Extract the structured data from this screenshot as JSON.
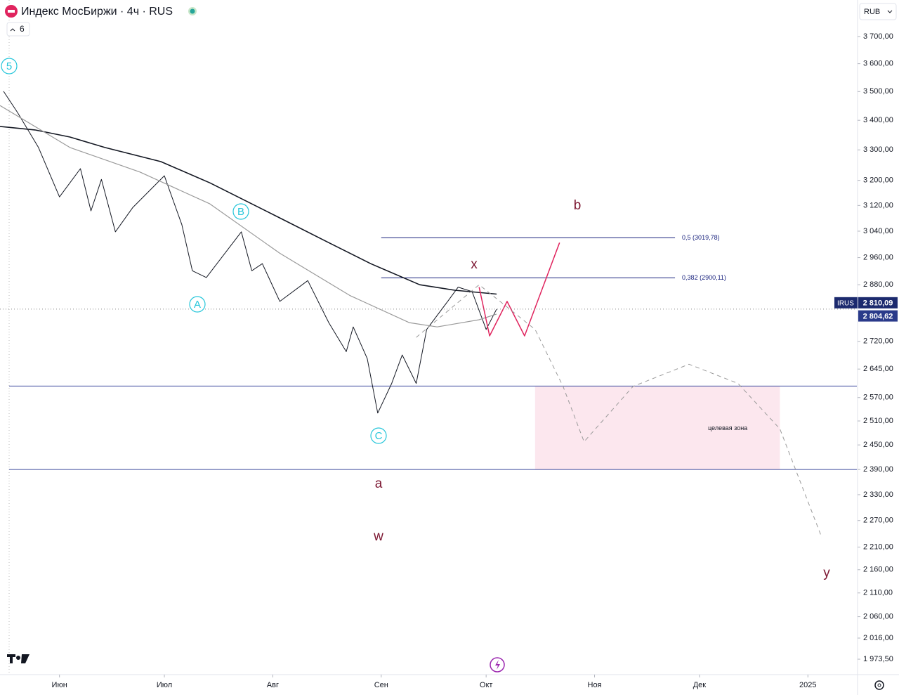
{
  "header": {
    "title": "Индекс МосБиржи · 4ч · RUS",
    "count": "6",
    "currency": "RUB"
  },
  "chart_data": {
    "type": "line",
    "log": true,
    "xlim": [
      14,
      259
    ],
    "xticks": [
      {
        "value": 31,
        "label": "Июн"
      },
      {
        "value": 61,
        "label": "Июл"
      },
      {
        "value": 92,
        "label": "Авг"
      },
      {
        "value": 123,
        "label": "Сен"
      },
      {
        "value": 153,
        "label": "Окт"
      },
      {
        "value": 184,
        "label": "Ноя"
      },
      {
        "value": 214,
        "label": "Дек"
      },
      {
        "value": 245,
        "label": "2025"
      }
    ],
    "ylim": [
      1943,
      3839
    ],
    "yticks": [
      {
        "value": 3700,
        "label": "3 700,00"
      },
      {
        "value": 3600,
        "label": "3 600,00"
      },
      {
        "value": 3500,
        "label": "3 500,00"
      },
      {
        "value": 3400,
        "label": "3 400,00"
      },
      {
        "value": 3300,
        "label": "3 300,00"
      },
      {
        "value": 3200,
        "label": "3 200,00"
      },
      {
        "value": 3120,
        "label": "3 120,00"
      },
      {
        "value": 3040,
        "label": "3 040,00"
      },
      {
        "value": 2960,
        "label": "2 960,00"
      },
      {
        "value": 2880,
        "label": "2 880,00"
      },
      {
        "value": 2720,
        "label": "2 720,00"
      },
      {
        "value": 2645,
        "label": "2 645,00"
      },
      {
        "value": 2570,
        "label": "2 570,00"
      },
      {
        "value": 2510,
        "label": "2 510,00"
      },
      {
        "value": 2450,
        "label": "2 450,00"
      },
      {
        "value": 2390,
        "label": "2 390,00"
      },
      {
        "value": 2330,
        "label": "2 330,00"
      },
      {
        "value": 2270,
        "label": "2 270,00"
      },
      {
        "value": 2210,
        "label": "2 210,00"
      },
      {
        "value": 2160,
        "label": "2 160,00"
      },
      {
        "value": 2110,
        "label": "2 110,00"
      },
      {
        "value": 2060,
        "label": "2 060,00"
      },
      {
        "value": 2016,
        "label": "2 016,00"
      },
      {
        "value": 1973.5,
        "label": "1 973,50"
      }
    ],
    "series": [
      {
        "name": "IRUS",
        "color": "#131722",
        "width": 1,
        "style": "solid",
        "x": [
          15,
          19,
          25,
          31,
          37,
          40,
          43,
          47,
          52,
          61,
          66,
          69,
          73,
          83,
          86,
          89,
          94,
          102,
          108,
          113,
          115,
          119,
          122,
          126,
          129,
          133,
          136,
          142,
          145,
          149,
          153,
          156
        ],
        "values": [
          3501,
          3427,
          3308,
          3147,
          3238,
          3103,
          3203,
          3038,
          3114,
          3215,
          3060,
          2921,
          2901,
          3038,
          2921,
          2942,
          2832,
          2892,
          2772,
          2692,
          2760,
          2673,
          2530,
          2607,
          2683,
          2607,
          2753,
          2832,
          2873,
          2860,
          2753,
          2810.09
        ]
      },
      {
        "name": "MA",
        "color": "#131722",
        "width": 1.6,
        "style": "solid",
        "x": [
          14,
          24,
          34,
          44,
          60,
          74,
          94,
          108,
          120,
          134,
          144,
          156
        ],
        "values": [
          3379,
          3367,
          3343,
          3308,
          3261,
          3192,
          3081,
          3005,
          2942,
          2880,
          2864,
          2853
        ]
      },
      {
        "name": "MA2",
        "color": "#9a9a9a",
        "width": 1.2,
        "style": "solid",
        "x": [
          14,
          34,
          54,
          74,
          94,
          114,
          131,
          139,
          151,
          156
        ],
        "values": [
          3451,
          3308,
          3227,
          3125,
          2973,
          2849,
          2772,
          2760,
          2780,
          2796
        ]
      },
      {
        "name": "forecast",
        "color": "#e0245e",
        "width": 1.5,
        "style": "solid",
        "x": [
          151,
          154,
          159,
          164,
          174
        ],
        "values": [
          2873,
          2735,
          2832,
          2735,
          3005
        ]
      },
      {
        "name": "path",
        "color": "#9a9a9a",
        "width": 1,
        "style": "dashed",
        "x": [
          133,
          151,
          167,
          175,
          181,
          195,
          211,
          225,
          237,
          249
        ],
        "values": [
          2731,
          2880,
          2753,
          2599,
          2458,
          2599,
          2658,
          2607,
          2490,
          2231
        ]
      }
    ],
    "fib_levels": [
      {
        "value": 3019.78,
        "label": "0,5 (3019,78)",
        "x": [
          123,
          207
        ]
      },
      {
        "value": 2900.11,
        "label": "0,382 (2900,11)",
        "x": [
          123,
          207
        ]
      }
    ],
    "hlines": [
      2600,
      2390
    ],
    "zone": {
      "label": "целевая зона",
      "x": [
        167,
        237
      ],
      "y": [
        2390,
        2600
      ]
    },
    "wave_labels": [
      "5",
      "B",
      "A",
      "C",
      "x",
      "b",
      "a",
      "w",
      "y"
    ],
    "symbol": "IRUS",
    "price_labels": [
      {
        "value": 2810.09,
        "label": "2 810,09"
      },
      {
        "value": 2804.62,
        "label": "2 804,62"
      }
    ]
  }
}
